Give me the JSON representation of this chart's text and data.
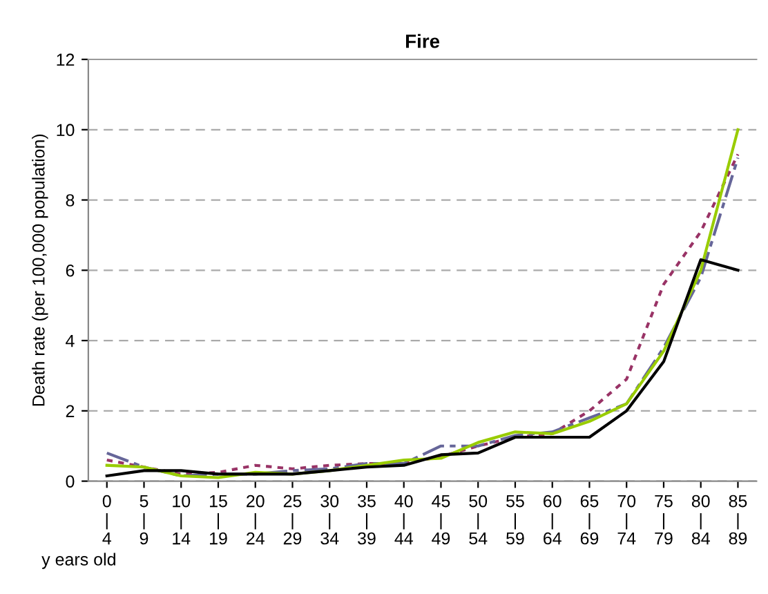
{
  "chart_data": {
    "type": "line",
    "title": "Fire",
    "ylabel": "Death rate (per 100,000 population)",
    "xlabel": "y ears old",
    "categories": [
      "0\n|\n4",
      "5\n|\n9",
      "10\n|\n14",
      "15\n|\n19",
      "20\n|\n24",
      "25\n|\n29",
      "30\n|\n34",
      "35\n|\n39",
      "40\n|\n44",
      "45\n|\n49",
      "50\n|\n54",
      "55\n|\n59",
      "60\n|\n64",
      "65\n|\n69",
      "70\n|\n74",
      "75\n|\n79",
      "80\n|\n84",
      "85\n|\n89"
    ],
    "series": [
      {
        "color": "#993366",
        "line_style": "dotted",
        "values": [
          0.6,
          0.4,
          0.2,
          0.25,
          0.45,
          0.35,
          0.45,
          0.5,
          0.5,
          0.7,
          1.0,
          1.25,
          1.35,
          2.0,
          2.9,
          5.6,
          7.1,
          9.3
        ]
      },
      {
        "color": "#666699",
        "line_style": "dashed",
        "values": [
          0.8,
          0.4,
          0.15,
          0.2,
          0.2,
          0.3,
          0.35,
          0.5,
          0.5,
          1.0,
          1.0,
          1.3,
          1.4,
          1.8,
          2.2,
          3.8,
          5.8,
          9.2
        ]
      },
      {
        "color": "#99cc00",
        "line_style": "solid",
        "values": [
          0.45,
          0.4,
          0.15,
          0.1,
          0.25,
          0.2,
          0.3,
          0.45,
          0.6,
          0.65,
          1.1,
          1.4,
          1.35,
          1.7,
          2.2,
          3.7,
          6.0,
          10.0
        ]
      },
      {
        "color": "#000000",
        "line_style": "solid",
        "values": [
          0.15,
          0.3,
          0.3,
          0.2,
          0.2,
          0.2,
          0.3,
          0.4,
          0.45,
          0.75,
          0.8,
          1.25,
          1.25,
          1.25,
          2.0,
          3.4,
          6.3,
          6.0
        ]
      }
    ],
    "ylim": [
      0,
      12
    ],
    "yticks": [
      0,
      2,
      4,
      6,
      8,
      10,
      12
    ],
    "grid": "y",
    "legend": false,
    "marker": "none"
  }
}
